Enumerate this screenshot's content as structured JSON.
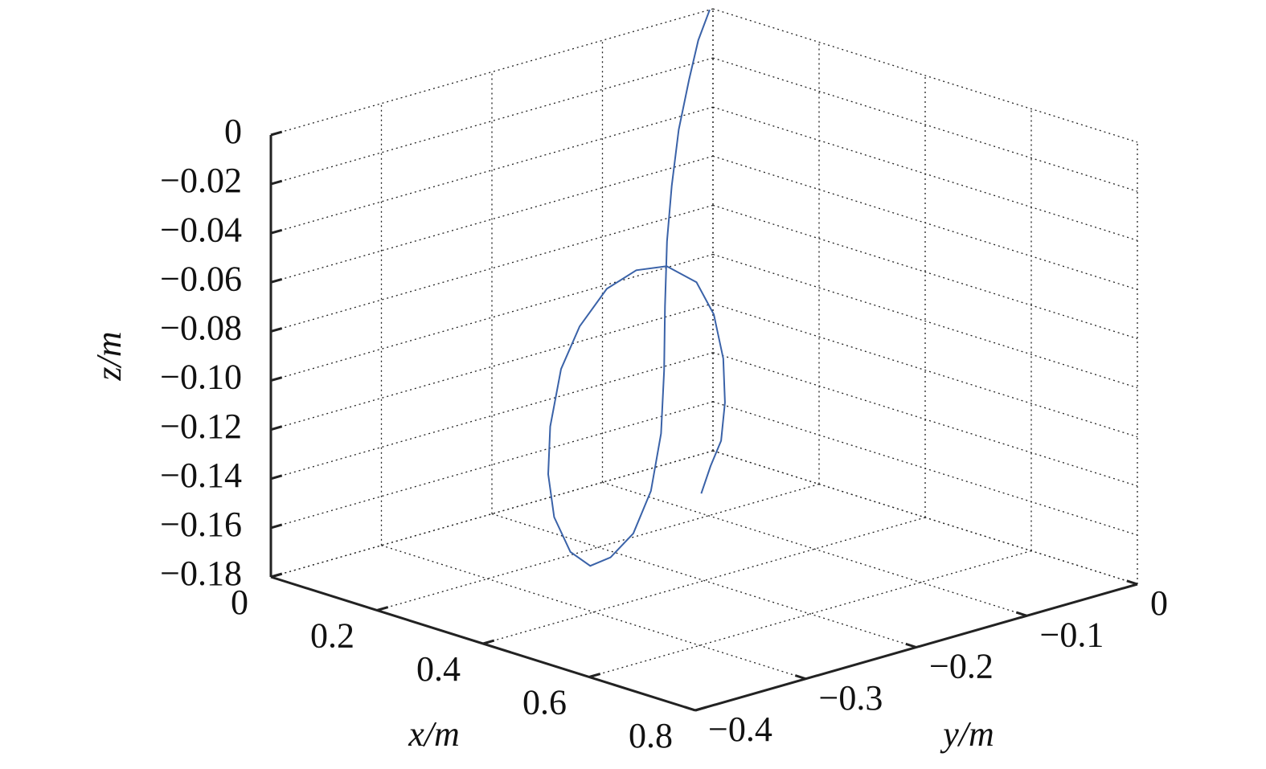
{
  "chart_data": {
    "type": "line3d",
    "xlabel": "x/m",
    "ylabel": "y/m",
    "zlabel": "z/m",
    "xlim": [
      0,
      0.8
    ],
    "ylim": [
      -0.4,
      0
    ],
    "zlim": [
      -0.18,
      0
    ],
    "xticks": [
      0,
      0.2,
      0.4,
      0.6,
      0.8
    ],
    "yticks": [
      {
        "value": -0.4,
        "label": "−0.4"
      },
      {
        "value": -0.3,
        "label": "−0.3"
      },
      {
        "value": -0.2,
        "label": "−0.2"
      },
      {
        "value": -0.1,
        "label": "−0.1"
      },
      0
    ],
    "zticks": [
      0,
      {
        "value": -0.02,
        "label": "−0.02"
      },
      {
        "value": -0.04,
        "label": "−0.04"
      },
      {
        "value": -0.06,
        "label": "−0.06"
      },
      {
        "value": -0.08,
        "label": "−0.08"
      },
      {
        "value": -0.1,
        "label": "−0.10"
      },
      {
        "value": -0.12,
        "label": "−0.12"
      },
      {
        "value": -0.14,
        "label": "−0.14"
      },
      {
        "value": -0.16,
        "label": "−0.16"
      },
      {
        "value": -0.18,
        "label": "−0.18"
      }
    ],
    "grid": true,
    "series": [
      {
        "color": "#3a62a8",
        "x": [
          0,
          0.016,
          0.032,
          0.048,
          0.064,
          0.08,
          0.12,
          0.16,
          0.2,
          0.256,
          0.304,
          0.336,
          0.352,
          0.352,
          0.336,
          0.304,
          0.264,
          0.224,
          0.184,
          0.152,
          0.12,
          0.096,
          0.096,
          0.112,
          0.136,
          0.16,
          0.184,
          0.208,
          0.232
        ],
        "y": [
          -0.003,
          -0.021,
          -0.037,
          -0.054,
          -0.068,
          -0.08,
          -0.101,
          -0.121,
          -0.143,
          -0.179,
          -0.218,
          -0.254,
          -0.28,
          -0.298,
          -0.305,
          -0.295,
          -0.274,
          -0.245,
          -0.209,
          -0.169,
          -0.127,
          -0.088,
          -0.061,
          -0.053,
          -0.056,
          -0.066,
          -0.081,
          -0.102,
          -0.122
        ],
        "z": [
          0,
          -0.009,
          -0.022,
          -0.039,
          -0.059,
          -0.079,
          -0.1,
          -0.121,
          -0.141,
          -0.156,
          -0.165,
          -0.168,
          -0.167,
          -0.159,
          -0.145,
          -0.131,
          -0.117,
          -0.1,
          -0.09,
          -0.082,
          -0.082,
          -0.087,
          -0.097,
          -0.11,
          -0.126,
          -0.141,
          -0.153,
          -0.159,
          -0.166
        ]
      }
    ]
  }
}
